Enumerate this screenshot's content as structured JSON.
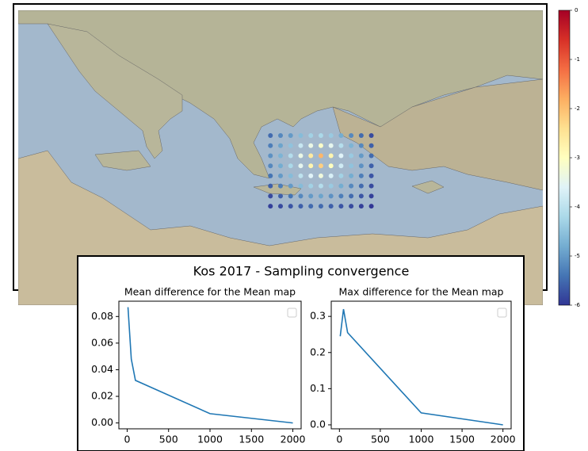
{
  "window": {
    "title": "Kos 2017 - Sampling convergence"
  },
  "chart_data": [
    {
      "type": "scatter",
      "xlim": [
        12,
        38
      ],
      "ylim": [
        29.6,
        44.2
      ],
      "zlim": [
        -6,
        0
      ],
      "zticks": [
        0,
        -1,
        -2,
        -3,
        -4,
        -5,
        -6
      ],
      "colormap_colors": [
        "#313695",
        "#4575b4",
        "#74add1",
        "#abd9e9",
        "#e0f3f8",
        "#ffffbf",
        "#fee090",
        "#fdae61",
        "#f46d43",
        "#d73027",
        "#a50026"
      ],
      "x": [
        24.5,
        25,
        25.5,
        26,
        26.5,
        27,
        27.5,
        28,
        28.5,
        29,
        29.5,
        24.5,
        25,
        25.5,
        26,
        26.5,
        27,
        27.5,
        28,
        28.5,
        29,
        29.5,
        24.5,
        25,
        25.5,
        26,
        26.5,
        27,
        27.5,
        28,
        28.5,
        29,
        29.5,
        24.5,
        25,
        25.5,
        26,
        26.5,
        27,
        27.5,
        28,
        28.5,
        29,
        29.5,
        24.5,
        25,
        25.5,
        26,
        26.5,
        27,
        27.5,
        28,
        28.5,
        29,
        29.5,
        24.5,
        25,
        25.5,
        26,
        26.5,
        27,
        27.5,
        28,
        28.5,
        29,
        29.5,
        24.5,
        25,
        25.5,
        26,
        26.5,
        27,
        27.5,
        28,
        28.5,
        29,
        29.5,
        24.5,
        25,
        25.5,
        26,
        26.5,
        27,
        27.5,
        28,
        28.5,
        29,
        29.5
      ],
      "y": [
        38,
        38,
        38,
        38,
        38,
        38,
        38,
        38,
        38,
        38,
        38,
        37.5,
        37.5,
        37.5,
        37.5,
        37.5,
        37.5,
        37.5,
        37.5,
        37.5,
        37.5,
        37.5,
        37,
        37,
        37,
        37,
        37,
        37,
        37,
        37,
        37,
        37,
        37,
        36.5,
        36.5,
        36.5,
        36.5,
        36.5,
        36.5,
        36.5,
        36.5,
        36.5,
        36.5,
        36.5,
        36,
        36,
        36,
        36,
        36,
        36,
        36,
        36,
        36,
        36,
        36,
        35.5,
        35.5,
        35.5,
        35.5,
        35.5,
        35.5,
        35.5,
        35.5,
        35.5,
        35.5,
        35.5,
        35,
        35,
        35,
        35,
        35,
        35,
        35,
        35,
        35,
        35,
        35,
        34.5,
        34.5,
        34.5,
        34.5,
        34.5,
        34.5,
        34.5,
        34.5,
        34.5,
        34.5,
        34.5
      ],
      "values": [
        -5.5,
        -5.2,
        -5.0,
        -4.6,
        -4.3,
        -4.2,
        -4.4,
        -4.8,
        -5.2,
        -5.5,
        -5.8,
        -5.3,
        -4.9,
        -4.5,
        -3.9,
        -3.4,
        -3.1,
        -3.5,
        -4.1,
        -4.7,
        -5.2,
        -5.6,
        -5.1,
        -4.7,
        -4.1,
        -3.4,
        -2.6,
        -1.9,
        -2.8,
        -3.6,
        -4.4,
        -5.0,
        -5.5,
        -5.2,
        -4.8,
        -4.2,
        -3.5,
        -2.8,
        -2.2,
        -3.0,
        -3.8,
        -4.5,
        -5.1,
        -5.6,
        -5.4,
        -5.0,
        -4.6,
        -4.0,
        -3.6,
        -3.3,
        -3.7,
        -4.3,
        -4.8,
        -5.3,
        -5.7,
        -5.6,
        -5.3,
        -5.0,
        -4.6,
        -4.3,
        -4.1,
        -4.4,
        -4.8,
        -5.2,
        -5.5,
        -5.8,
        -5.8,
        -5.6,
        -5.4,
        -5.2,
        -5.0,
        -4.9,
        -5.1,
        -5.3,
        -5.5,
        -5.7,
        -5.9,
        -5.9,
        -5.8,
        -5.7,
        -5.6,
        -5.5,
        -5.5,
        -5.6,
        -5.7,
        -5.8,
        -5.9,
        -6.0
      ]
    },
    {
      "type": "line",
      "title": "Mean difference for the Mean map",
      "color": "#1f77b4",
      "x": [
        10,
        50,
        100,
        1000,
        2000
      ],
      "values": [
        0.087,
        0.048,
        0.032,
        0.007,
        0.0
      ],
      "xlim": [
        -100,
        2100
      ],
      "ylim": [
        -0.0044,
        0.0915
      ],
      "xticks": [
        0,
        500,
        1000,
        1500,
        2000
      ],
      "yticks": [
        {
          "value": 0,
          "label": "0.00"
        },
        0.02,
        0.04,
        0.06,
        0.08
      ]
    },
    {
      "type": "line",
      "title": "Max difference for the Mean map",
      "color": "#1f77b4",
      "x": [
        10,
        50,
        100,
        1000,
        2000
      ],
      "values": [
        0.245,
        0.32,
        0.255,
        0.033,
        0.0
      ],
      "xlim": [
        -100,
        2100
      ],
      "ylim": [
        -0.011,
        0.342
      ],
      "xticks": [
        0,
        500,
        1000,
        1500,
        2000
      ],
      "yticks": [
        {
          "value": 0,
          "label": "0.0"
        },
        0.1,
        0.2,
        0.3
      ]
    }
  ]
}
